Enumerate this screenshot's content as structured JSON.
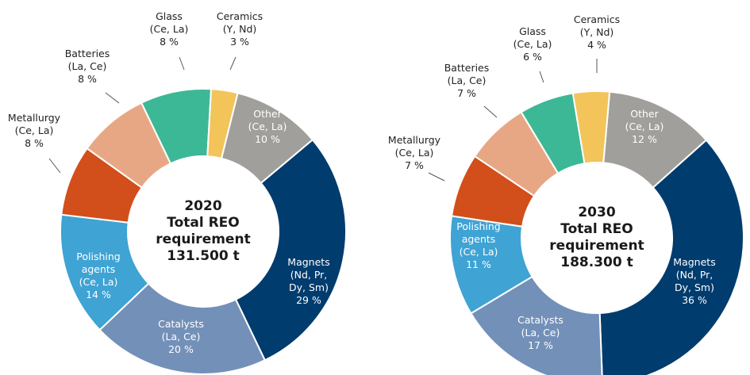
{
  "chart_data": [
    {
      "type": "pie",
      "title": "2020",
      "subtitle": "Total REO requirement",
      "annotation": "131.500 t",
      "categories": [
        "Other",
        "Magnets",
        "Catalysts",
        "Polishing agents",
        "Metallurgy",
        "Batteries",
        "Glass",
        "Ceramics"
      ],
      "elements": [
        "(Ce, La)",
        "(Nd, Pr, Dy, Sm)",
        "(La, Ce)",
        "(Ce, La)",
        "(Ce, La)",
        "(La, Ce)",
        "(Ce, La)",
        "(Y, Nd)"
      ],
      "values": [
        10,
        29,
        20,
        14,
        8,
        8,
        8,
        3
      ],
      "value_labels": [
        "10 %",
        "29 %",
        "20 %",
        "14 %",
        "8 %",
        "8 %",
        "8 %",
        "3 %"
      ],
      "colors": [
        "#a09f9b",
        "#003c6e",
        "#7390b8",
        "#3fa3d4",
        "#d24e1a",
        "#e8a784",
        "#3db896",
        "#f2c45a"
      ]
    },
    {
      "type": "pie",
      "title": "2030",
      "subtitle": "Total REO requirement",
      "annotation": "188.300 t",
      "categories": [
        "Other",
        "Magnets",
        "Catalysts",
        "Polishing agents",
        "Metallurgy",
        "Batteries",
        "Glass",
        "Ceramics"
      ],
      "elements": [
        "(Ce, La)",
        "(Nd, Pr, Dy, Sm)",
        "(La, Ce)",
        "(Ce, La)",
        "(Ce, La)",
        "(La, Ce)",
        "(Ce, La)",
        "(Y, Nd)"
      ],
      "values": [
        12,
        36,
        17,
        11,
        7,
        7,
        6,
        4
      ],
      "value_labels": [
        "12 %",
        "36 %",
        "17 %",
        "11 %",
        "7 %",
        "7 %",
        "6 %",
        "4 %"
      ],
      "colors": [
        "#a09f9b",
        "#003c6e",
        "#7390b8",
        "#3fa3d4",
        "#d24e1a",
        "#e8a784",
        "#3db896",
        "#f2c45a"
      ]
    }
  ]
}
